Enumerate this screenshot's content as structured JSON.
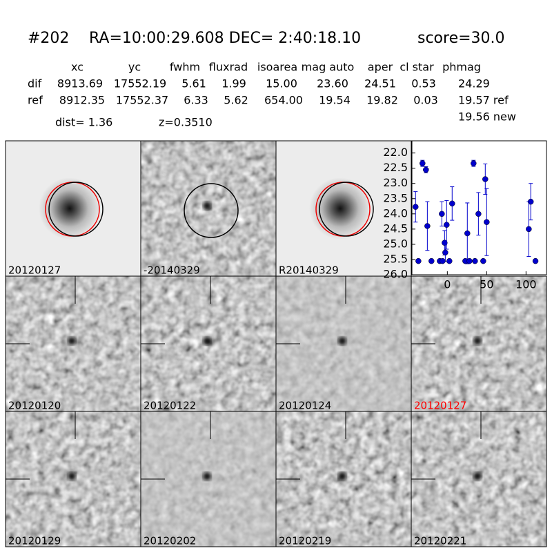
{
  "header": {
    "id": "#202",
    "coords": "RA=10:00:29.608 DEC= 2:40:18.10",
    "score": "score=30.0"
  },
  "table": {
    "columns": [
      "xc",
      "yc",
      "fwhm",
      "fluxrad",
      "isoarea",
      "mag auto",
      "aper",
      "cl star",
      "phmag"
    ],
    "rows": [
      [
        "dif",
        "8913.69",
        "17552.19",
        "5.61",
        "1.99",
        "15.00",
        "23.60",
        "24.51",
        "0.53",
        "24.29"
      ],
      [
        "ref",
        "8912.35",
        "17552.37",
        "6.33",
        "5.62",
        "654.00",
        "19.54",
        "19.82",
        "0.03",
        "19.57 ref"
      ]
    ],
    "extra": "19.56 new"
  },
  "dist": "dist=  1.36",
  "redshift": "z=0.3510",
  "panels": [
    {
      "label": "20120127",
      "color": "#000000"
    },
    {
      "label": "-20140329",
      "color": "#000000"
    },
    {
      "label": "R20140329",
      "color": "#000000"
    },
    {
      "label": "20120120",
      "color": "#000000"
    },
    {
      "label": "20120122",
      "color": "#000000"
    },
    {
      "label": "20120124",
      "color": "#000000"
    },
    {
      "label": "20120127",
      "color": "#ff0000"
    },
    {
      "label": "20120129",
      "color": "#000000"
    },
    {
      "label": "20120202",
      "color": "#000000"
    },
    {
      "label": "20120219",
      "color": "#000000"
    },
    {
      "label": "20120221",
      "color": "#000000"
    }
  ],
  "chart_data": {
    "type": "scatter",
    "color": "#0000cc",
    "inverted_y": true,
    "x": [
      -40.4,
      -36.8,
      -31.6,
      -27.2,
      -25.4,
      -20.2,
      -9.6,
      -7,
      -3.5,
      -2.6,
      -0.9,
      -6.1,
      2.6,
      6.1,
      25.4,
      22.8,
      28.1,
      35.1,
      33.3,
      39.5,
      45.6,
      48.2,
      50,
      103.5,
      106,
      112
    ],
    "values": [
      23.77,
      25.55,
      22.34,
      22.55,
      24.4,
      25.55,
      25.55,
      24.0,
      24.95,
      25.27,
      24.36,
      25.55,
      25.55,
      23.66,
      24.64,
      25.55,
      25.55,
      25.55,
      22.34,
      24.0,
      25.55,
      22.86,
      24.27,
      24.5,
      23.6,
      25.55
    ],
    "errors": [
      0.5,
      0.05,
      0.1,
      0.1,
      0.8,
      0.05,
      0.05,
      0.4,
      0.4,
      0.3,
      0.8,
      0.05,
      0.05,
      0.55,
      1.0,
      0.05,
      0.05,
      0.05,
      0.1,
      0.7,
      0.05,
      0.5,
      1.1,
      0.9,
      0.6,
      0.05
    ],
    "xlim": [
      -45,
      126
    ],
    "ylim": [
      21.6,
      26.0
    ],
    "xticks": [
      0,
      50,
      100
    ],
    "yticks": [
      {
        "value": 22,
        "label": "22.0"
      },
      {
        "value": 22.5,
        "label": "22.5"
      },
      {
        "value": 23,
        "label": "23.0"
      },
      {
        "value": 23.5,
        "label": "23.5"
      },
      {
        "value": 24,
        "label": "24.0"
      },
      {
        "value": 24.5,
        "label": "24.5"
      },
      {
        "value": 25,
        "label": "25.0"
      },
      {
        "value": 25.5,
        "label": "25.5"
      },
      {
        "value": 26,
        "label": "26.0"
      }
    ]
  }
}
